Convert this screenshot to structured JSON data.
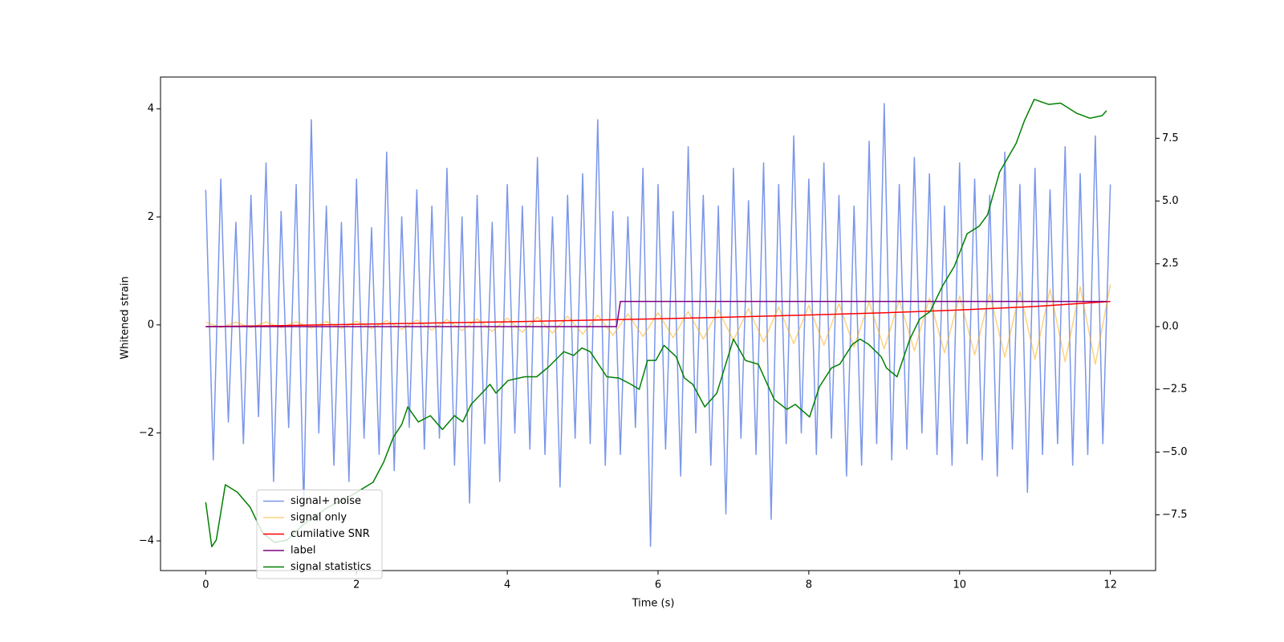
{
  "chart_data": {
    "type": "line",
    "xlabel": "Time (s)",
    "ylabel": "Whitened strain",
    "xlim": [
      -0.6,
      12.6
    ],
    "ylim": [
      -4.55,
      4.59
    ],
    "y2lim": [
      -9.72,
      9.94
    ],
    "xticks": [
      0,
      2,
      4,
      6,
      8,
      10,
      12
    ],
    "yticks": [
      {
        "value": -4,
        "label": "−4"
      },
      {
        "value": -2,
        "label": "−2"
      },
      0,
      2,
      4
    ],
    "y2ticks": [
      {
        "value": -7.5,
        "label": "−7.5"
      },
      {
        "value": -5,
        "label": "−5.0"
      },
      {
        "value": -2.5,
        "label": "−2.5"
      },
      {
        "value": 0,
        "label": "0.0"
      },
      2.5,
      {
        "value": 5,
        "label": "5.0"
      },
      7.5
    ],
    "legend": "lower left",
    "series": [
      {
        "name": "signal+ noise",
        "color": "#4169e1",
        "opacity": 0.7,
        "x": [
          0,
          0.1,
          0.2,
          0.3,
          0.4,
          0.5,
          0.6,
          0.7,
          0.8,
          0.9,
          1,
          1.1,
          1.2,
          1.3,
          1.4,
          1.5,
          1.6,
          1.7,
          1.8,
          1.9,
          2,
          2.1,
          2.2,
          2.3,
          2.4,
          2.5,
          2.6,
          2.7,
          2.8,
          2.9,
          3,
          3.1,
          3.2,
          3.3,
          3.4,
          3.5,
          3.6,
          3.7,
          3.8,
          3.9,
          4,
          4.1,
          4.2,
          4.3,
          4.4,
          4.5,
          4.6,
          4.7,
          4.8,
          4.9,
          5,
          5.1,
          5.2,
          5.3,
          5.4,
          5.5,
          5.6,
          5.7,
          5.8,
          5.9,
          6,
          6.1,
          6.2,
          6.3,
          6.4,
          6.5,
          6.6,
          6.7,
          6.8,
          6.9,
          7,
          7.1,
          7.2,
          7.3,
          7.4,
          7.5,
          7.6,
          7.7,
          7.8,
          7.9,
          8,
          8.1,
          8.2,
          8.3,
          8.4,
          8.5,
          8.6,
          8.7,
          8.8,
          8.9,
          9,
          9.1,
          9.2,
          9.3,
          9.4,
          9.5,
          9.6,
          9.7,
          9.8,
          9.9,
          10,
          10.1,
          10.2,
          10.3,
          10.4,
          10.5,
          10.6,
          10.7,
          10.8,
          10.9,
          11,
          11.1,
          11.2,
          11.3,
          11.4,
          11.5,
          11.6,
          11.7,
          11.8,
          11.9,
          12
        ],
        "values": [
          2.5,
          -2.5,
          2.7,
          -1.8,
          1.9,
          -2.2,
          2.4,
          -1.7,
          3.0,
          -2.9,
          2.1,
          -1.9,
          2.6,
          -3.4,
          3.8,
          -2.0,
          2.2,
          -2.6,
          1.9,
          -2.9,
          2.7,
          -2.1,
          1.8,
          -2.4,
          3.2,
          -2.7,
          2.0,
          -1.9,
          2.5,
          -2.3,
          2.2,
          -2.1,
          2.9,
          -2.6,
          2.0,
          -3.3,
          2.4,
          -2.2,
          1.9,
          -2.9,
          2.6,
          -2.0,
          2.2,
          -2.3,
          3.1,
          -2.4,
          2.0,
          -3.0,
          2.4,
          -2.1,
          2.8,
          -2.2,
          3.8,
          -2.6,
          2.1,
          -2.4,
          2.0,
          -1.9,
          2.9,
          -4.1,
          2.6,
          -2.3,
          2.1,
          -2.8,
          3.3,
          -2.0,
          2.4,
          -2.6,
          2.2,
          -3.5,
          2.9,
          -2.1,
          2.3,
          -2.4,
          3.0,
          -3.6,
          2.6,
          -2.2,
          3.5,
          -2.0,
          2.7,
          -2.4,
          3.0,
          -2.1,
          2.4,
          -2.8,
          2.2,
          -2.6,
          3.4,
          -2.2,
          4.1,
          -2.5,
          2.6,
          -2.3,
          3.1,
          -2.0,
          2.8,
          -2.4,
          2.2,
          -2.6,
          3.0,
          -2.2,
          2.7,
          -2.5,
          2.4,
          -2.8,
          3.2,
          -2.3,
          2.6,
          -3.1,
          2.9,
          -2.4,
          2.5,
          -2.2,
          3.3,
          -2.6,
          2.8,
          -2.4,
          3.5,
          -2.2,
          2.6
        ]
      },
      {
        "name": "signal only",
        "color": "#ffa500",
        "opacity": 0.5,
        "x": [
          0,
          0.2,
          0.4,
          0.6,
          0.8,
          1,
          1.2,
          1.4,
          1.6,
          1.8,
          2,
          2.2,
          2.4,
          2.6,
          2.8,
          3,
          3.2,
          3.4,
          3.6,
          3.8,
          4,
          4.2,
          4.4,
          4.6,
          4.8,
          5,
          5.2,
          5.4,
          5.6,
          5.8,
          6,
          6.2,
          6.4,
          6.6,
          6.8,
          7,
          7.2,
          7.4,
          7.6,
          7.8,
          8,
          8.2,
          8.4,
          8.6,
          8.8,
          9,
          9.2,
          9.4,
          9.6,
          9.8,
          10,
          10.2,
          10.4,
          10.6,
          10.8,
          11,
          11.2,
          11.4,
          11.6,
          11.8,
          12
        ],
        "values": [
          0.05,
          -0.05,
          0.051,
          -0.052,
          0.053,
          -0.055,
          0.057,
          -0.06,
          0.062,
          -0.066,
          0.069,
          -0.07,
          0.078,
          -0.083,
          0.088,
          -0.094,
          0.1,
          -0.107,
          0.113,
          -0.12,
          0.128,
          -0.136,
          0.144,
          -0.153,
          0.162,
          -0.171,
          0.181,
          -0.192,
          0.202,
          -0.214,
          0.225,
          -0.237,
          0.249,
          -0.262,
          0.275,
          -0.288,
          0.302,
          -0.316,
          0.331,
          -0.346,
          0.361,
          -0.377,
          0.393,
          -0.409,
          0.426,
          -0.444,
          0.461,
          -0.479,
          0.498,
          -0.517,
          0.536,
          -0.555,
          0.576,
          -0.596,
          0.617,
          -0.638,
          0.66,
          -0.682,
          0.705,
          -0.728,
          0.75
        ]
      },
      {
        "name": "cumilative SNR",
        "color": "#ff0000",
        "axis": "y2",
        "x": [
          0,
          1,
          2,
          3,
          4,
          5,
          6,
          7,
          8,
          9,
          10,
          11,
          12
        ],
        "values": [
          0,
          0.04,
          0.09,
          0.14,
          0.19,
          0.25,
          0.31,
          0.38,
          0.46,
          0.55,
          0.66,
          0.8,
          1.0
        ]
      },
      {
        "name": "label",
        "color": "#800080",
        "axis": "y2",
        "x": [
          0,
          5.45,
          5.5,
          11.95
        ],
        "values": [
          0,
          0,
          1,
          1
        ]
      },
      {
        "name": "signal statistics",
        "color": "#008000",
        "axis": "y2",
        "x": [
          0,
          0.08,
          0.14,
          0.26,
          0.42,
          0.59,
          0.75,
          0.91,
          1.08,
          1.29,
          1.62,
          1.95,
          2.22,
          2.36,
          2.49,
          2.6,
          2.68,
          2.82,
          2.98,
          3.14,
          3.3,
          3.41,
          3.52,
          3.68,
          3.77,
          3.85,
          4.01,
          4.23,
          4.39,
          4.55,
          4.75,
          4.88,
          4.99,
          5.1,
          5.21,
          5.32,
          5.48,
          5.64,
          5.75,
          5.86,
          5.97,
          6.08,
          6.24,
          6.35,
          6.46,
          6.62,
          6.78,
          7.0,
          7.16,
          7.33,
          7.54,
          7.71,
          7.82,
          8.01,
          8.14,
          8.3,
          8.41,
          8.58,
          8.68,
          8.79,
          8.96,
          9.03,
          9.17,
          9.34,
          9.47,
          9.61,
          9.77,
          9.93,
          10.1,
          10.26,
          10.37,
          10.53,
          10.75,
          10.86,
          10.99,
          11.18,
          11.34,
          11.55,
          11.73,
          11.89,
          11.95
        ],
        "values": [
          -7.0,
          -8.77,
          -8.5,
          -6.3,
          -6.6,
          -7.2,
          -8.2,
          -8.6,
          -8.5,
          -7.9,
          -7.2,
          -6.7,
          -6.2,
          -5.4,
          -4.4,
          -3.9,
          -3.2,
          -3.8,
          -3.55,
          -4.1,
          -3.55,
          -3.8,
          -3.1,
          -2.6,
          -2.3,
          -2.65,
          -2.15,
          -2.0,
          -2.0,
          -1.6,
          -1.0,
          -1.15,
          -0.85,
          -1.0,
          -1.5,
          -2.0,
          -2.05,
          -2.3,
          -2.5,
          -1.35,
          -1.35,
          -0.75,
          -1.2,
          -2.05,
          -2.3,
          -3.2,
          -2.65,
          -0.5,
          -1.35,
          -1.5,
          -2.9,
          -3.3,
          -3.1,
          -3.6,
          -2.4,
          -1.65,
          -1.5,
          -0.7,
          -0.5,
          -0.7,
          -1.2,
          -1.65,
          -2.0,
          -0.5,
          0.3,
          0.6,
          1.6,
          2.4,
          3.7,
          4.0,
          4.45,
          6.15,
          7.3,
          8.2,
          9.05,
          8.85,
          8.9,
          8.5,
          8.3,
          8.4,
          8.6
        ]
      }
    ]
  }
}
